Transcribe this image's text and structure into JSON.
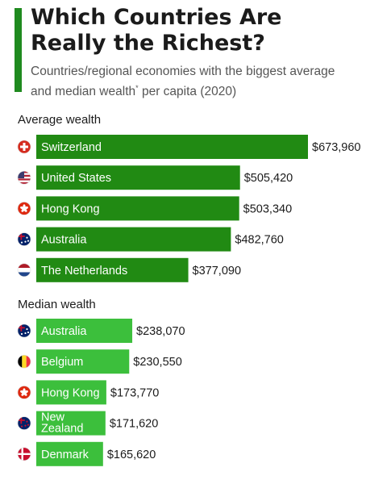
{
  "title_line1": "Which Countries Are",
  "title_line2": "Really the Richest?",
  "subtitle_line1": "Countries/regional economies with the biggest average",
  "subtitle_line2_pre": "and median wealth",
  "subtitle_sup": "*",
  "subtitle_line2_post": " per capita (2020)",
  "colors": {
    "accent": "#1f8a1f",
    "average_bar": "#218a13",
    "median_bar": "#3cbf3c"
  },
  "chart_data": [
    {
      "type": "bar",
      "title": "Average wealth",
      "bar_color": "#218a13",
      "categories": [
        "Switzerland",
        "United States",
        "Hong Kong",
        "Australia",
        "The Netherlands"
      ],
      "labels": [
        "$673,960",
        "$505,420",
        "$503,340",
        "$482,760",
        "$377,090"
      ],
      "values": [
        673960,
        505420,
        503340,
        482760,
        377090
      ],
      "flag_icons": [
        "switzerland-flag-icon",
        "united-states-flag-icon",
        "hong-kong-flag-icon",
        "australia-flag-icon",
        "netherlands-flag-icon"
      ]
    },
    {
      "type": "bar",
      "title": "Median wealth",
      "bar_color": "#3cbf3c",
      "categories": [
        "Australia",
        "Belgium",
        "Hong Kong",
        "New Zealand",
        "Denmark"
      ],
      "labels": [
        "$238,070",
        "$230,550",
        "$173,770",
        "$171,620",
        "$165,620"
      ],
      "values": [
        238070,
        230550,
        173770,
        171620,
        165620
      ],
      "flag_icons": [
        "australia-flag-icon",
        "belgium-flag-icon",
        "hong-kong-flag-icon",
        "new-zealand-flag-icon",
        "denmark-flag-icon"
      ]
    }
  ]
}
